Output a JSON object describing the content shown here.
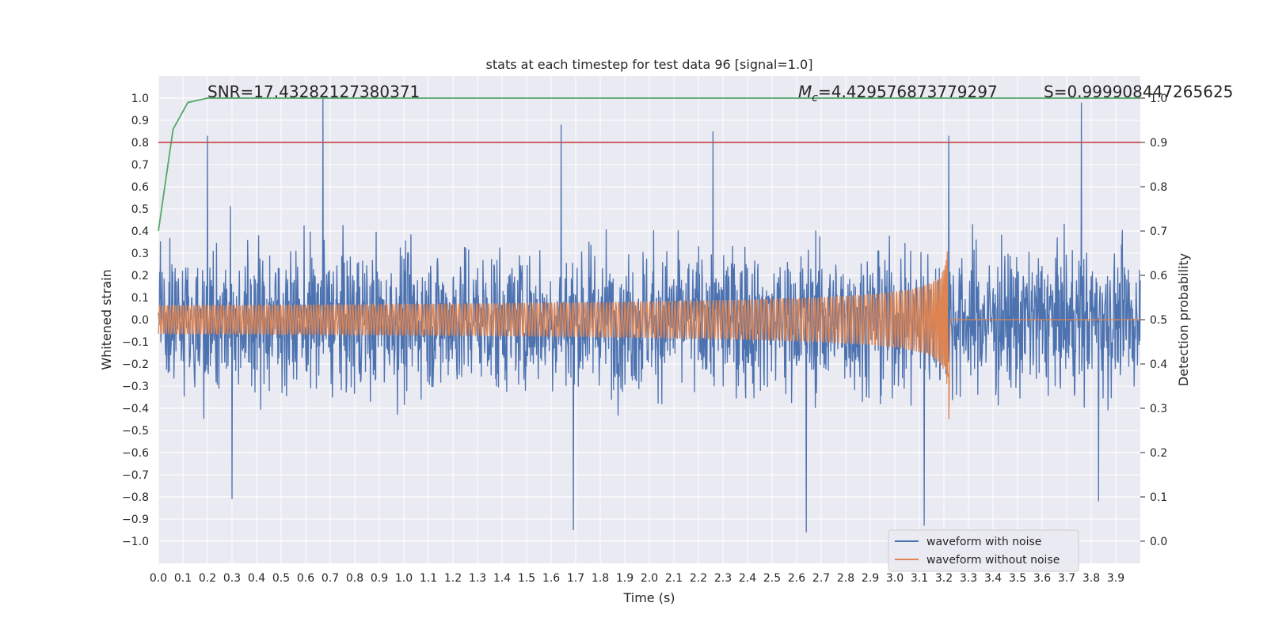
{
  "chart_data": {
    "type": "line",
    "title": "stats at each timestep for test data 96 [signal=1.0]",
    "xlabel": "Time (s)",
    "ylabel": "Whitened strain",
    "y2label": "Detection probability",
    "xlim": [
      0.0,
      4.0
    ],
    "ylim": [
      -1.1,
      1.1
    ],
    "y2lim": [
      -0.05,
      1.05
    ],
    "x_ticks": [
      "0.0",
      "0.1",
      "0.2",
      "0.3",
      "0.4",
      "0.5",
      "0.6",
      "0.7",
      "0.8",
      "0.9",
      "1.0",
      "1.1",
      "1.2",
      "1.3",
      "1.4",
      "1.5",
      "1.6",
      "1.7",
      "1.8",
      "1.9",
      "2.0",
      "2.1",
      "2.2",
      "2.3",
      "2.4",
      "2.5",
      "2.6",
      "2.7",
      "2.8",
      "2.9",
      "3.0",
      "3.1",
      "3.2",
      "3.3",
      "3.4",
      "3.5",
      "3.6",
      "3.7",
      "3.8",
      "3.9"
    ],
    "y_ticks": [
      "1.0",
      "0.9",
      "0.8",
      "0.7",
      "0.6",
      "0.5",
      "0.4",
      "0.3",
      "0.2",
      "0.1",
      "0.0",
      "−0.1",
      "−0.2",
      "−0.3",
      "−0.4",
      "−0.5",
      "−0.6",
      "−0.7",
      "−0.8",
      "−0.9",
      "−1.0"
    ],
    "y2_ticks": [
      "1.0",
      "0.9",
      "0.8",
      "0.7",
      "0.6",
      "0.5",
      "0.4",
      "0.3",
      "0.2",
      "0.1",
      "0.0"
    ],
    "grid": true,
    "legend_position": "lower-right",
    "annotations": {
      "snr": "SNR=17.43282127380371",
      "mc_symbol": "M",
      "mc_subscript": "c",
      "mc_value": "=4.429576873779297",
      "s": "S=0.999908447265625"
    },
    "series": [
      {
        "name": "waveform with noise",
        "color": "#4c72b0",
        "axis": "left",
        "description": "noisy whitened strain",
        "noise_envelope_typical": 0.45,
        "peak_points": [
          {
            "x": 0.67,
            "y": 1.0
          },
          {
            "x": 0.2,
            "y": 0.83
          },
          {
            "x": 1.64,
            "y": 0.88
          },
          {
            "x": 2.26,
            "y": 0.85
          },
          {
            "x": 3.22,
            "y": 0.83
          },
          {
            "x": 3.76,
            "y": 0.98
          },
          {
            "x": 1.69,
            "y": -0.95
          },
          {
            "x": 2.64,
            "y": -0.96
          },
          {
            "x": 3.12,
            "y": -0.93
          },
          {
            "x": 0.3,
            "y": -0.81
          },
          {
            "x": 3.83,
            "y": -0.82
          }
        ]
      },
      {
        "name": "waveform without noise",
        "color": "#dd8452",
        "axis": "left",
        "description": "chirp signal, amplitude grows until merger",
        "start_amplitude": 0.065,
        "merger_time": 3.22,
        "merger_amplitude": 0.45,
        "post_merger_value": 0.0
      },
      {
        "name": "detection probability",
        "color": "#55a868",
        "axis": "right",
        "x": [
          0.0,
          0.06,
          0.12,
          0.2,
          4.0
        ],
        "y": [
          0.7,
          0.93,
          0.99,
          1.0,
          1.0
        ]
      },
      {
        "name": "threshold",
        "color": "#c44e52",
        "axis": "right",
        "x": [
          0.0,
          4.0
        ],
        "y": [
          0.9,
          0.9
        ]
      }
    ]
  }
}
